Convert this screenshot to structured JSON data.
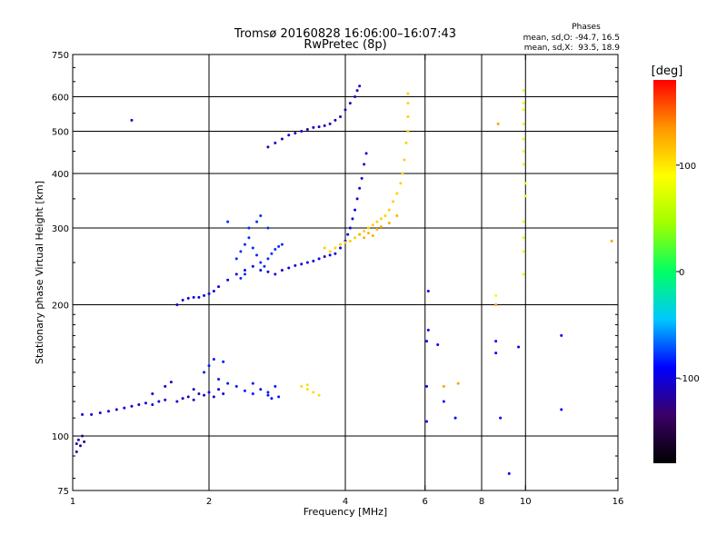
{
  "chart_data": {
    "type": "scatter",
    "title": "Tromsø 20160828 16:06:00–16:07:43",
    "subtitle": "RwPretec (8p)",
    "xlabel": "Frequency [MHz]",
    "ylabel": "Stationary phase Virtual Height [km]",
    "x_scale": "log",
    "y_scale": "log",
    "xlim": [
      1,
      16
    ],
    "ylim": [
      75,
      750
    ],
    "x_ticks": [
      1,
      2,
      4,
      6,
      8,
      10,
      16
    ],
    "y_ticks": [
      75,
      100,
      200,
      300,
      400,
      500,
      600,
      750
    ],
    "x_gridlines": [
      2,
      4,
      6,
      8,
      10
    ],
    "y_gridlines": [
      100,
      200,
      300,
      400,
      500,
      600
    ],
    "grid": true,
    "stats": {
      "heading": "Phases",
      "line_o": "mean, sd,O: -94.7, 16.5",
      "line_x": "mean, sd,X:  93.5, 18.9"
    },
    "colorbar": {
      "label": "[deg]",
      "range": [
        -180,
        180
      ],
      "ticks": [
        100,
        0,
        -100
      ],
      "colors": [
        "#000000",
        "#3b0066",
        "#0000ff",
        "#00c8ff",
        "#00ff64",
        "#a0ff00",
        "#ffff00",
        "#ff9600",
        "#ff0000"
      ]
    },
    "series": [
      {
        "phase": -115,
        "points": [
          [
            1.02,
            96
          ],
          [
            1.03,
            98
          ],
          [
            1.04,
            95
          ],
          [
            1.05,
            100
          ],
          [
            1.02,
            92
          ],
          [
            1.06,
            97
          ]
        ]
      },
      {
        "phase": -105,
        "points": [
          [
            1.05,
            112
          ],
          [
            1.1,
            112
          ],
          [
            1.15,
            113
          ],
          [
            1.2,
            114
          ],
          [
            1.25,
            115
          ],
          [
            1.3,
            116
          ],
          [
            1.35,
            117
          ],
          [
            1.4,
            118
          ],
          [
            1.45,
            119
          ],
          [
            1.5,
            118
          ],
          [
            1.55,
            120
          ],
          [
            1.6,
            121
          ],
          [
            1.7,
            120
          ],
          [
            1.75,
            122
          ],
          [
            1.8,
            123
          ],
          [
            1.85,
            121
          ],
          [
            1.9,
            125
          ],
          [
            1.95,
            124
          ],
          [
            2.0,
            126
          ],
          [
            2.05,
            123
          ],
          [
            2.1,
            128
          ],
          [
            2.15,
            125
          ],
          [
            1.5,
            125
          ],
          [
            1.6,
            130
          ],
          [
            1.65,
            133
          ],
          [
            1.85,
            128
          ]
        ]
      },
      {
        "phase": -85,
        "points": [
          [
            1.95,
            140
          ],
          [
            2.0,
            145
          ],
          [
            2.05,
            150
          ],
          [
            2.1,
            135
          ],
          [
            2.15,
            148
          ],
          [
            2.2,
            132
          ],
          [
            2.3,
            130
          ],
          [
            2.4,
            127
          ],
          [
            2.5,
            125
          ],
          [
            2.6,
            128
          ],
          [
            2.7,
            126
          ],
          [
            2.8,
            130
          ],
          [
            2.85,
            123
          ],
          [
            2.5,
            132
          ],
          [
            2.7,
            124
          ],
          [
            2.75,
            122
          ]
        ]
      },
      {
        "phase": 105,
        "points": [
          [
            3.2,
            130
          ],
          [
            3.3,
            128
          ],
          [
            3.4,
            126
          ],
          [
            3.5,
            124
          ],
          [
            3.3,
            131
          ]
        ]
      },
      {
        "phase": -100,
        "points": [
          [
            1.7,
            200
          ],
          [
            1.75,
            205
          ],
          [
            1.8,
            207
          ],
          [
            1.85,
            208
          ],
          [
            1.9,
            208
          ],
          [
            1.95,
            210
          ],
          [
            2.0,
            212
          ],
          [
            2.05,
            215
          ],
          [
            2.1,
            220
          ],
          [
            2.2,
            228
          ],
          [
            2.3,
            235
          ],
          [
            2.4,
            240
          ],
          [
            2.5,
            245
          ],
          [
            2.6,
            240
          ],
          [
            2.7,
            238
          ],
          [
            2.8,
            235
          ],
          [
            2.9,
            240
          ],
          [
            3.0,
            243
          ],
          [
            3.1,
            246
          ],
          [
            3.2,
            248
          ],
          [
            3.3,
            250
          ],
          [
            3.4,
            252
          ],
          [
            3.5,
            255
          ],
          [
            3.6,
            258
          ],
          [
            3.7,
            260
          ],
          [
            3.8,
            262
          ],
          [
            3.9,
            270
          ],
          [
            4.0,
            280
          ],
          [
            4.05,
            290
          ],
          [
            4.1,
            300
          ],
          [
            4.15,
            315
          ],
          [
            4.2,
            330
          ],
          [
            4.25,
            350
          ],
          [
            4.3,
            370
          ],
          [
            4.35,
            390
          ],
          [
            4.4,
            420
          ],
          [
            4.45,
            445
          ]
        ]
      },
      {
        "phase": -80,
        "points": [
          [
            2.3,
            255
          ],
          [
            2.35,
            265
          ],
          [
            2.4,
            275
          ],
          [
            2.45,
            285
          ],
          [
            2.5,
            270
          ],
          [
            2.55,
            260
          ],
          [
            2.6,
            250
          ],
          [
            2.65,
            245
          ],
          [
            2.7,
            255
          ],
          [
            2.75,
            262
          ],
          [
            2.8,
            268
          ],
          [
            2.85,
            272
          ],
          [
            2.9,
            275
          ],
          [
            2.45,
            300
          ],
          [
            2.55,
            310
          ],
          [
            2.35,
            230
          ],
          [
            2.4,
            235
          ],
          [
            2.6,
            320
          ],
          [
            2.7,
            300
          ],
          [
            2.2,
            310
          ]
        ]
      },
      {
        "phase": -110,
        "points": [
          [
            2.7,
            460
          ],
          [
            2.8,
            470
          ],
          [
            2.9,
            480
          ],
          [
            3.0,
            490
          ],
          [
            3.1,
            495
          ],
          [
            3.2,
            500
          ],
          [
            3.3,
            505
          ],
          [
            3.4,
            510
          ],
          [
            3.5,
            512
          ],
          [
            3.6,
            515
          ],
          [
            3.7,
            520
          ],
          [
            3.8,
            530
          ],
          [
            3.9,
            540
          ],
          [
            4.0,
            560
          ],
          [
            4.1,
            580
          ],
          [
            4.2,
            600
          ],
          [
            4.25,
            620
          ],
          [
            4.3,
            635
          ],
          [
            1.35,
            530
          ]
        ]
      },
      {
        "phase": 110,
        "points": [
          [
            3.6,
            270
          ],
          [
            3.7,
            265
          ],
          [
            3.8,
            270
          ],
          [
            3.9,
            275
          ],
          [
            4.0,
            278
          ],
          [
            4.1,
            280
          ],
          [
            4.2,
            285
          ],
          [
            4.3,
            290
          ],
          [
            4.4,
            295
          ],
          [
            4.5,
            300
          ],
          [
            4.6,
            305
          ],
          [
            4.7,
            310
          ],
          [
            4.8,
            315
          ],
          [
            4.9,
            320
          ],
          [
            5.0,
            330
          ],
          [
            5.1,
            345
          ],
          [
            5.2,
            360
          ],
          [
            5.3,
            380
          ],
          [
            5.35,
            400
          ],
          [
            5.4,
            430
          ],
          [
            5.45,
            470
          ],
          [
            5.5,
            500
          ],
          [
            5.5,
            540
          ],
          [
            5.5,
            580
          ],
          [
            5.5,
            610
          ]
        ]
      },
      {
        "phase": 125,
        "points": [
          [
            4.3,
            290
          ],
          [
            4.4,
            285
          ],
          [
            4.5,
            292
          ],
          [
            4.6,
            288
          ],
          [
            4.7,
            298
          ],
          [
            4.8,
            302
          ],
          [
            5.0,
            308
          ],
          [
            5.2,
            320
          ]
        ]
      },
      {
        "phase": -90,
        "points": [
          [
            6.1,
            215
          ],
          [
            6.05,
            165
          ],
          [
            6.1,
            175
          ],
          [
            6.05,
            130
          ],
          [
            6.05,
            108
          ],
          [
            6.4,
            162
          ],
          [
            6.6,
            120
          ],
          [
            7.0,
            110
          ],
          [
            8.6,
            165
          ],
          [
            8.6,
            155
          ],
          [
            8.8,
            110
          ],
          [
            9.2,
            82
          ],
          [
            9.65,
            160
          ],
          [
            12.0,
            170
          ],
          [
            12.0,
            115
          ]
        ]
      },
      {
        "phase": 80,
        "points": [
          [
            9.9,
            620
          ],
          [
            9.9,
            580
          ],
          [
            9.9,
            560
          ],
          [
            9.9,
            520
          ],
          [
            9.9,
            480
          ],
          [
            9.9,
            450
          ],
          [
            9.9,
            420
          ],
          [
            10.0,
            380
          ],
          [
            10.0,
            355
          ],
          [
            9.9,
            310
          ],
          [
            9.9,
            285
          ],
          [
            9.9,
            265
          ],
          [
            9.9,
            235
          ],
          [
            8.6,
            210
          ]
        ]
      },
      {
        "phase": 130,
        "points": [
          [
            8.7,
            520
          ],
          [
            8.6,
            200
          ],
          [
            15.5,
            280
          ],
          [
            6.6,
            130
          ],
          [
            7.1,
            132
          ]
        ]
      }
    ]
  }
}
